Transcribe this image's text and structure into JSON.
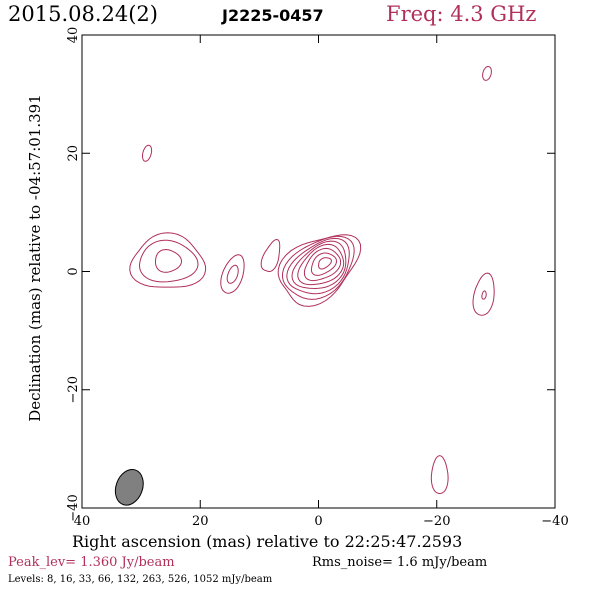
{
  "header": {
    "date": "2015.08.24(2)",
    "source": "J2225-0457",
    "freq": "Freq: 4.3 GHz"
  },
  "chart_data": {
    "type": "contour",
    "title": "J2225-0457",
    "xlabel": "Right ascension (mas) relative to 22:25:47.2593",
    "ylabel": "Declination (mas) relative to -04:57:01.391",
    "xlim": [
      40,
      -40
    ],
    "ylim": [
      -40,
      40
    ],
    "x_ticks": [
      40,
      20,
      0,
      -20,
      -40
    ],
    "y_ticks": [
      -40,
      -20,
      0,
      20,
      40
    ],
    "x_tick_labels": [
      "40",
      "20",
      "0",
      "−20",
      "−40"
    ],
    "y_tick_labels": [
      "−40",
      "−20",
      "0",
      "20",
      "40"
    ],
    "contour_color": "#b0305a",
    "contour_levels_mJy_per_beam": [
      8,
      16,
      33,
      66,
      132,
      263,
      526,
      1052
    ],
    "features": [
      {
        "name": "core",
        "x": 0.0,
        "y": 0.5,
        "levels": 8
      },
      {
        "name": "eastern component",
        "x": 25.5,
        "y": 1.5,
        "levels": 3
      },
      {
        "name": "component at 15 mas",
        "x": 14.5,
        "y": -0.5,
        "levels": 2
      },
      {
        "name": "component near core",
        "x": 8.0,
        "y": 2.5,
        "levels": 1
      },
      {
        "name": "north-east spot",
        "x": 29.0,
        "y": 20.0,
        "levels": 1
      },
      {
        "name": "north-west spot",
        "x": -28.5,
        "y": 33.5,
        "levels": 1
      },
      {
        "name": "west component",
        "x": -28.0,
        "y": -4.0,
        "levels": 2
      },
      {
        "name": "south spot",
        "x": -20.5,
        "y": -34.5,
        "levels": 1
      }
    ],
    "beam": {
      "x": 32.0,
      "y": -36.5,
      "major_mas": 6.2,
      "minor_mas": 2.8,
      "pa_deg": 20,
      "fill": "#808080"
    },
    "peak_level": "Peak_lev=  1.360 Jy/beam",
    "rms_noise": "Rms_noise=  1.6 mJy/beam",
    "levels_text": "Levels:  8,  16,  33,  66, 132, 263, 526, 1052 mJy/beam"
  }
}
